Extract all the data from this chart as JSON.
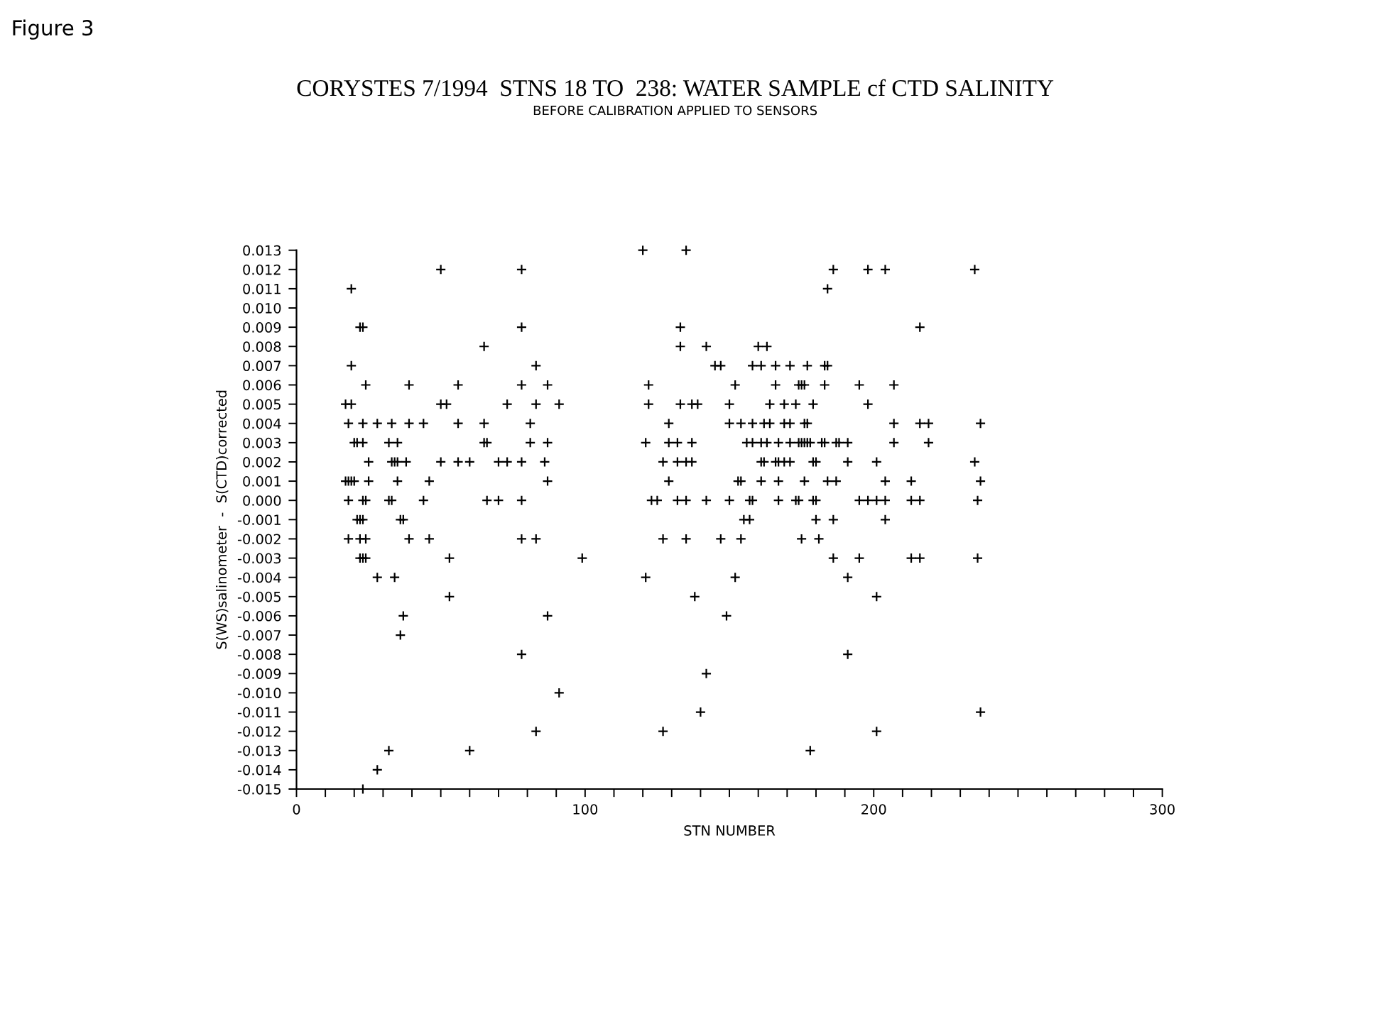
{
  "chart_data": {
    "type": "scatter",
    "title": "CORYSTES 7/1994  STNS 18 TO  238: WATER SAMPLE cf CTD SALINITY",
    "subtitle": "BEFORE CALIBRATION APPLIED TO SENSORS",
    "xlabel": "STN NUMBER",
    "ylabel": "S(WS)salinometer  -  S(CTD)corrected",
    "annotations": [
      "Figure 3"
    ],
    "marker": "cross",
    "grid": false,
    "legend": false,
    "xlim": [
      0,
      300
    ],
    "xticks": [
      0,
      {
        "value": 10,
        "label": null
      },
      {
        "value": 20,
        "label": null
      },
      {
        "value": 30,
        "label": null
      },
      {
        "value": 40,
        "label": null
      },
      {
        "value": 50,
        "label": null
      },
      {
        "value": 60,
        "label": null
      },
      {
        "value": 70,
        "label": null
      },
      {
        "value": 80,
        "label": null
      },
      {
        "value": 90,
        "label": null
      },
      100,
      {
        "value": 110,
        "label": null
      },
      {
        "value": 120,
        "label": null
      },
      {
        "value": 130,
        "label": null
      },
      {
        "value": 140,
        "label": null
      },
      {
        "value": 150,
        "label": null
      },
      {
        "value": 160,
        "label": null
      },
      {
        "value": 170,
        "label": null
      },
      {
        "value": 180,
        "label": null
      },
      {
        "value": 190,
        "label": null
      },
      200,
      {
        "value": 210,
        "label": null
      },
      {
        "value": 220,
        "label": null
      },
      {
        "value": 230,
        "label": null
      },
      {
        "value": 240,
        "label": null
      },
      {
        "value": 250,
        "label": null
      },
      {
        "value": 260,
        "label": null
      },
      {
        "value": 270,
        "label": null
      },
      {
        "value": 280,
        "label": null
      },
      {
        "value": 290,
        "label": null
      },
      300
    ],
    "ylim": [
      -0.015,
      0.013
    ],
    "yticks": [
      -0.015,
      -0.014,
      -0.013,
      -0.012,
      -0.011,
      {
        "value": -0.01,
        "label": "-0.010"
      },
      -0.009,
      -0.008,
      -0.007,
      -0.006,
      -0.005,
      -0.004,
      -0.003,
      -0.002,
      -0.001,
      {
        "value": 0,
        "label": "0.000"
      },
      0.001,
      0.002,
      0.003,
      0.004,
      0.005,
      0.006,
      0.007,
      0.008,
      0.009,
      {
        "value": 0.01,
        "label": "0.010"
      },
      0.011,
      0.012,
      0.013
    ],
    "series": [
      {
        "color": "#000000",
        "x": [
          120,
          135,
          50,
          78,
          186,
          198,
          204,
          235,
          19,
          184,
          22,
          23,
          78,
          133,
          216,
          65,
          133,
          142,
          160,
          163,
          19,
          83,
          145,
          147,
          158,
          161,
          166,
          171,
          177,
          183,
          184,
          24,
          39,
          56,
          78,
          87,
          122,
          152,
          166,
          174,
          175,
          176,
          183,
          195,
          207,
          17,
          19,
          50,
          52,
          73,
          83,
          91,
          122,
          133,
          137,
          139,
          150,
          164,
          169,
          173,
          179,
          198,
          18,
          23,
          28,
          33,
          39,
          44,
          56,
          65,
          81,
          129,
          150,
          154,
          158,
          162,
          164,
          169,
          171,
          176,
          177,
          207,
          216,
          219,
          237,
          20,
          21,
          23,
          32,
          35,
          65,
          66,
          81,
          87,
          121,
          129,
          132,
          137,
          156,
          158,
          161,
          163,
          167,
          171,
          174,
          175,
          176,
          177,
          178,
          182,
          183,
          187,
          188,
          191,
          207,
          219,
          25,
          33,
          34,
          35,
          38,
          50,
          56,
          60,
          70,
          73,
          78,
          86,
          127,
          132,
          135,
          137,
          161,
          162,
          166,
          167,
          169,
          171,
          179,
          180,
          191,
          201,
          235,
          17,
          18,
          19,
          20,
          25,
          35,
          46,
          87,
          129,
          153,
          154,
          161,
          167,
          176,
          184,
          187,
          204,
          213,
          237,
          18,
          23,
          24,
          32,
          33,
          44,
          66,
          70,
          78,
          123,
          125,
          132,
          135,
          142,
          150,
          157,
          158,
          167,
          173,
          174,
          179,
          180,
          195,
          198,
          201,
          204,
          213,
          216,
          236,
          21,
          22,
          23,
          36,
          37,
          155,
          157,
          180,
          186,
          204,
          18,
          22,
          24,
          39,
          46,
          78,
          83,
          127,
          135,
          147,
          154,
          175,
          181,
          22,
          23,
          24,
          53,
          99,
          186,
          195,
          213,
          216,
          236,
          28,
          34,
          121,
          152,
          191,
          53,
          138,
          201,
          37,
          87,
          149,
          36,
          78,
          191,
          142,
          91,
          140,
          237,
          83,
          127,
          201,
          32,
          60,
          178,
          28,
          23
        ],
        "values": [
          0.013,
          0.013,
          0.012,
          0.012,
          0.012,
          0.012,
          0.012,
          0.012,
          0.011,
          0.011,
          0.009,
          0.009,
          0.009,
          0.009,
          0.009,
          0.008,
          0.008,
          0.008,
          0.008,
          0.008,
          0.007,
          0.007,
          0.007,
          0.007,
          0.007,
          0.007,
          0.007,
          0.007,
          0.007,
          0.007,
          0.007,
          0.006,
          0.006,
          0.006,
          0.006,
          0.006,
          0.006,
          0.006,
          0.006,
          0.006,
          0.006,
          0.006,
          0.006,
          0.006,
          0.006,
          0.005,
          0.005,
          0.005,
          0.005,
          0.005,
          0.005,
          0.005,
          0.005,
          0.005,
          0.005,
          0.005,
          0.005,
          0.005,
          0.005,
          0.005,
          0.005,
          0.005,
          0.004,
          0.004,
          0.004,
          0.004,
          0.004,
          0.004,
          0.004,
          0.004,
          0.004,
          0.004,
          0.004,
          0.004,
          0.004,
          0.004,
          0.004,
          0.004,
          0.004,
          0.004,
          0.004,
          0.004,
          0.004,
          0.004,
          0.004,
          0.003,
          0.003,
          0.003,
          0.003,
          0.003,
          0.003,
          0.003,
          0.003,
          0.003,
          0.003,
          0.003,
          0.003,
          0.003,
          0.003,
          0.003,
          0.003,
          0.003,
          0.003,
          0.003,
          0.003,
          0.003,
          0.003,
          0.003,
          0.003,
          0.003,
          0.003,
          0.003,
          0.003,
          0.003,
          0.003,
          0.003,
          0.002,
          0.002,
          0.002,
          0.002,
          0.002,
          0.002,
          0.002,
          0.002,
          0.002,
          0.002,
          0.002,
          0.002,
          0.002,
          0.002,
          0.002,
          0.002,
          0.002,
          0.002,
          0.002,
          0.002,
          0.002,
          0.002,
          0.002,
          0.002,
          0.002,
          0.002,
          0.002,
          0.001,
          0.001,
          0.001,
          0.001,
          0.001,
          0.001,
          0.001,
          0.001,
          0.001,
          0.001,
          0.001,
          0.001,
          0.001,
          0.001,
          0.001,
          0.001,
          0.001,
          0.001,
          0.001,
          0,
          0,
          0,
          0,
          0,
          0,
          0,
          0,
          0,
          0,
          0,
          0,
          0,
          0,
          0,
          0,
          0,
          0,
          0,
          0,
          0,
          0,
          0,
          0,
          0,
          0,
          0,
          0,
          0,
          -0.001,
          -0.001,
          -0.001,
          -0.001,
          -0.001,
          -0.001,
          -0.001,
          -0.001,
          -0.001,
          -0.001,
          -0.002,
          -0.002,
          -0.002,
          -0.002,
          -0.002,
          -0.002,
          -0.002,
          -0.002,
          -0.002,
          -0.002,
          -0.002,
          -0.002,
          -0.002,
          -0.003,
          -0.003,
          -0.003,
          -0.003,
          -0.003,
          -0.003,
          -0.003,
          -0.003,
          -0.003,
          -0.003,
          -0.004,
          -0.004,
          -0.004,
          -0.004,
          -0.004,
          -0.005,
          -0.005,
          -0.005,
          -0.006,
          -0.006,
          -0.006,
          -0.007,
          -0.008,
          -0.008,
          -0.009,
          -0.01,
          -0.011,
          -0.011,
          -0.012,
          -0.012,
          -0.012,
          -0.013,
          -0.013,
          -0.013,
          -0.014,
          -0.015
        ]
      }
    ]
  }
}
